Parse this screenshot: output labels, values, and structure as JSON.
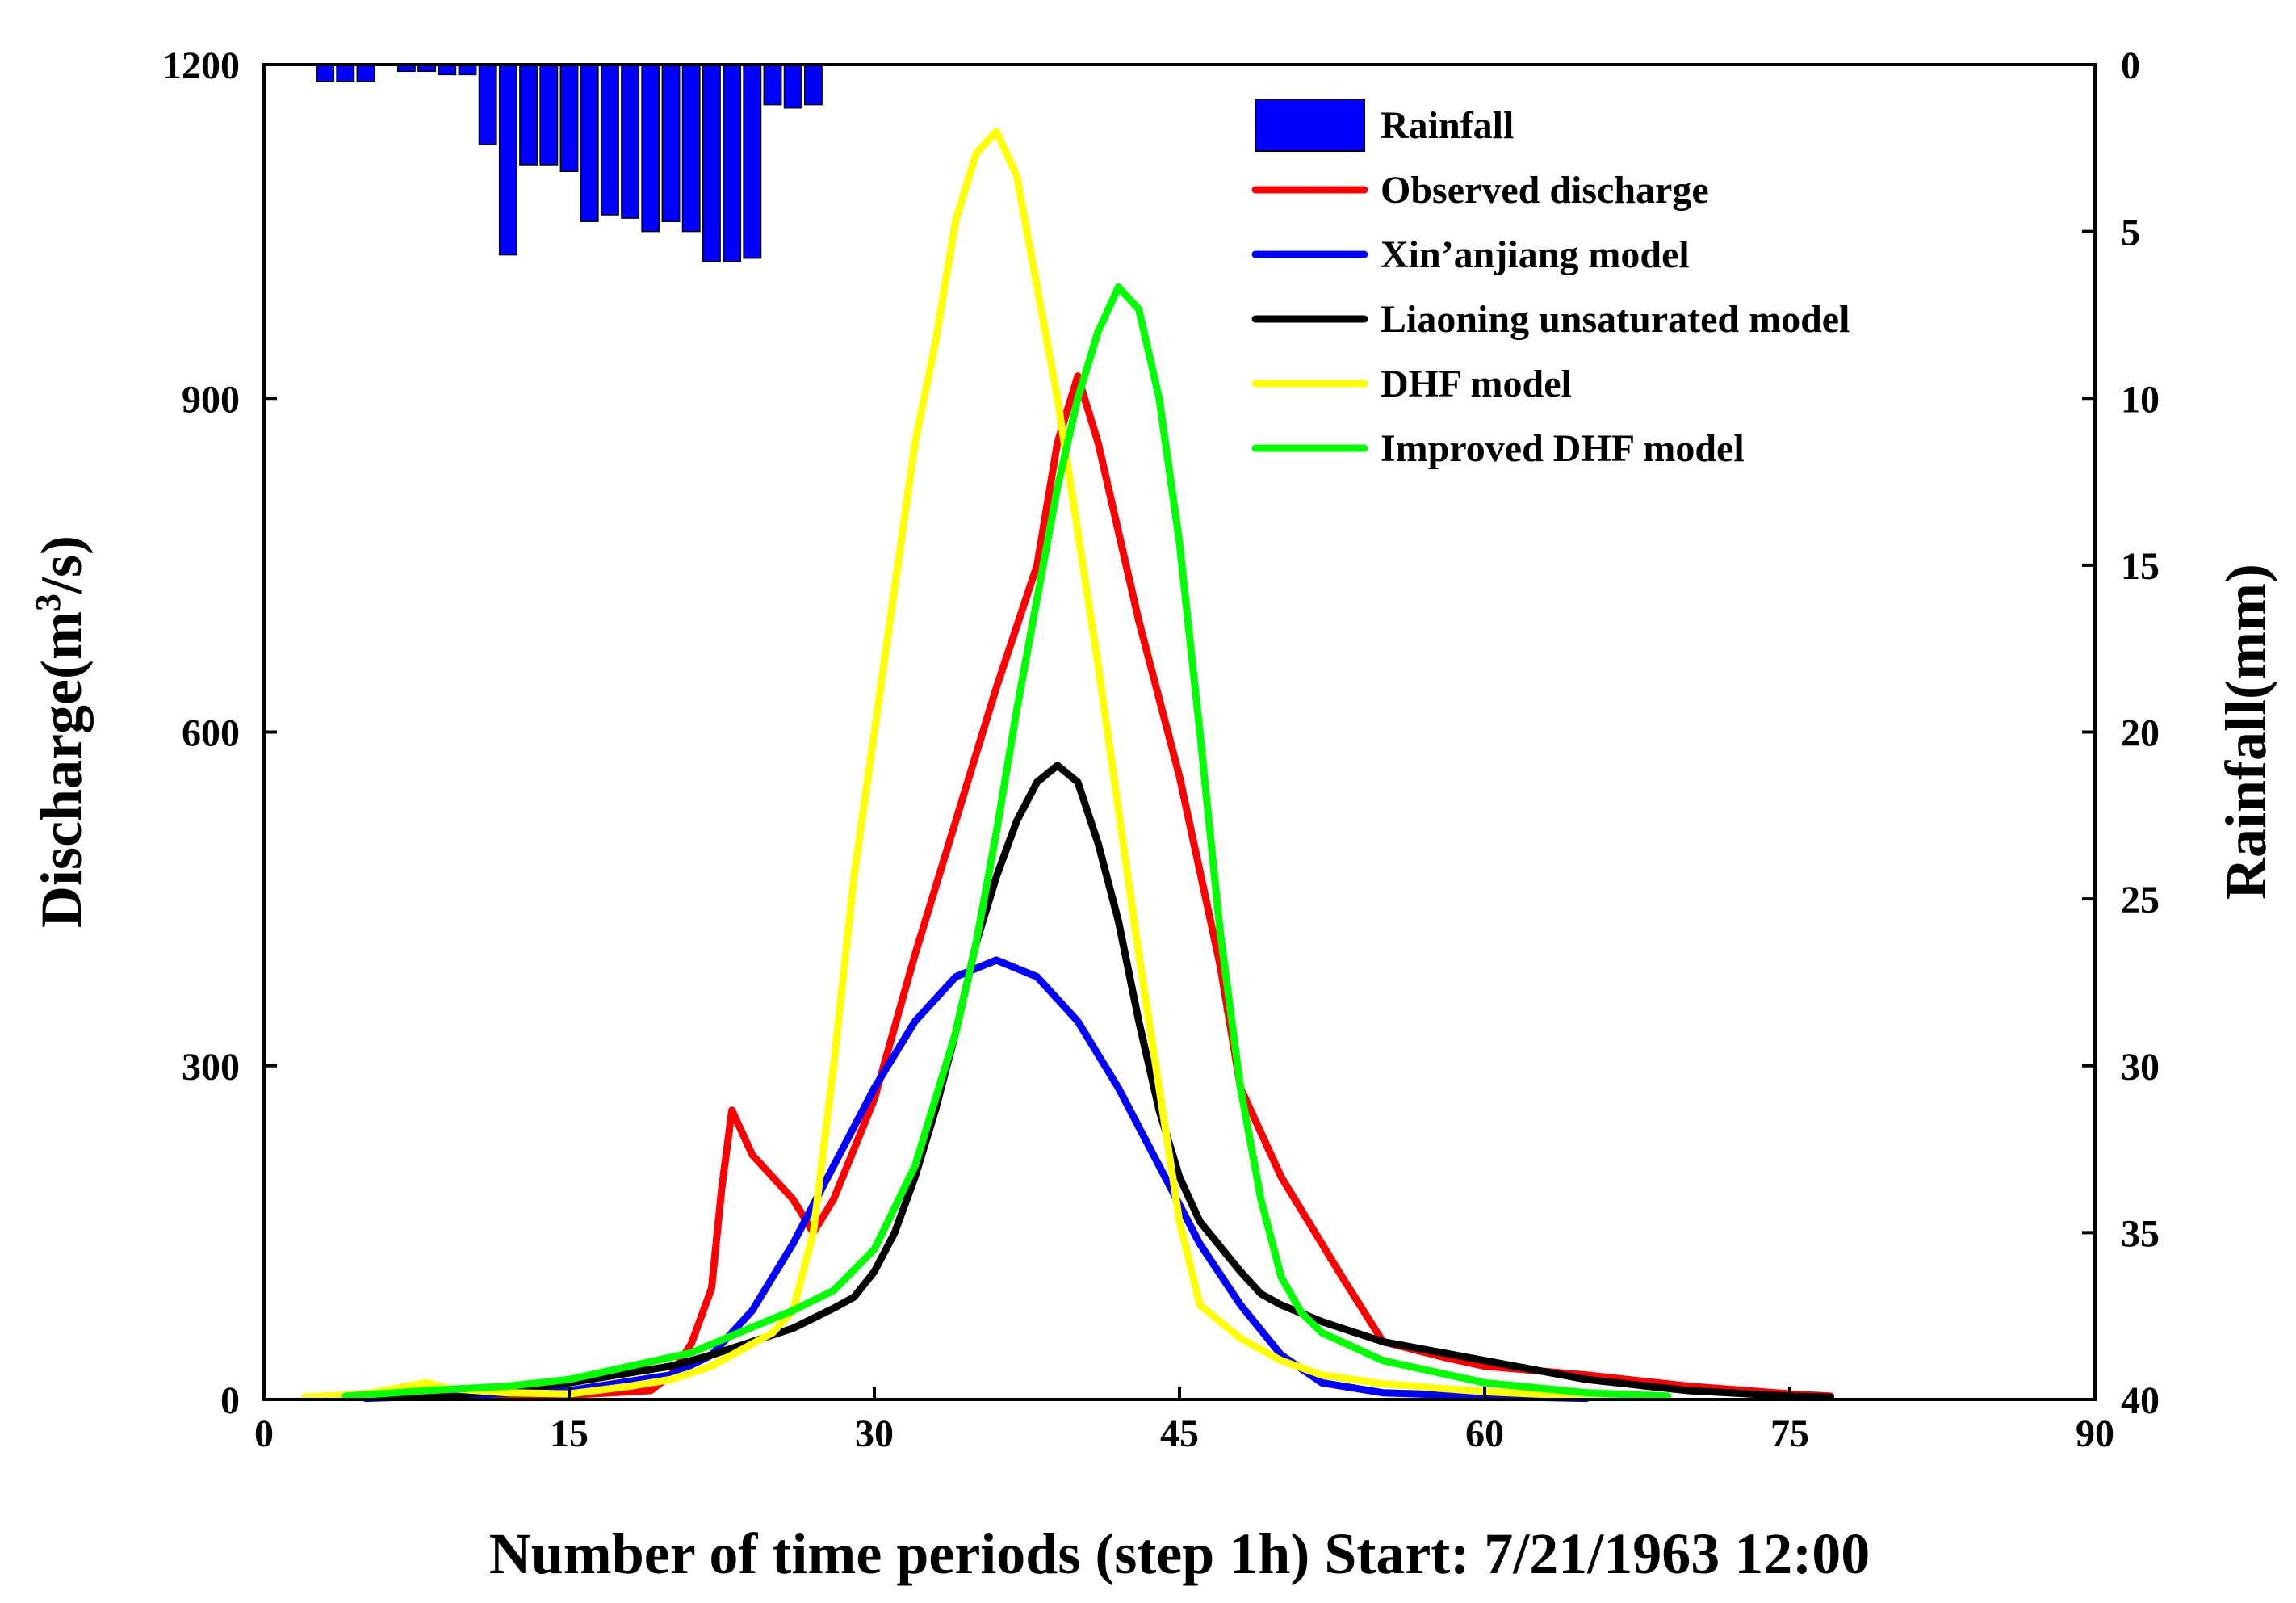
{
  "chart_data": {
    "type": "line",
    "title": "",
    "xlabel": "Number of time periods (step 1h) Start: 7/21/1963 12:00",
    "ylabel_left": "Discharge(m³/s)",
    "ylabel_left_parts": {
      "main": "Discharge(m",
      "sup": "3",
      "end": "/s)"
    },
    "ylabel_right": "Rainfall(mm)",
    "xlim": [
      0,
      90
    ],
    "ylim_left": [
      0,
      1200
    ],
    "ylim_right_inverted": [
      0,
      40
    ],
    "x_ticks": [
      0,
      15,
      30,
      45,
      60,
      75,
      90
    ],
    "y_left_ticks": [
      0,
      300,
      600,
      900,
      1200
    ],
    "y_right_ticks": [
      0,
      5,
      10,
      15,
      20,
      25,
      30,
      35,
      40
    ],
    "grid": false,
    "legend_position": "top-right",
    "rainfall": {
      "name": "Rainfall",
      "color": "#0000ff",
      "x": [
        3,
        4,
        5,
        7,
        8,
        9,
        10,
        11,
        12,
        13,
        14,
        15,
        16,
        17,
        18,
        19,
        20,
        21,
        22,
        23,
        24,
        25,
        26,
        27
      ],
      "values": [
        0.5,
        0.5,
        0.5,
        0.2,
        0.2,
        0.3,
        0.3,
        2.4,
        5.7,
        3.0,
        3.0,
        3.2,
        4.7,
        4.5,
        4.6,
        5.0,
        4.7,
        5.0,
        5.9,
        5.9,
        5.8,
        1.2,
        1.3,
        1.2
      ]
    },
    "series": [
      {
        "name": "Observed discharge",
        "color": "#ff0000",
        "points": [
          [
            2,
            2
          ],
          [
            5,
            3
          ],
          [
            10,
            3
          ],
          [
            15,
            4
          ],
          [
            19,
            8
          ],
          [
            20,
            22
          ],
          [
            21,
            50
          ],
          [
            22,
            100
          ],
          [
            22.5,
            190
          ],
          [
            23,
            260
          ],
          [
            24,
            220
          ],
          [
            25,
            200
          ],
          [
            26,
            180
          ],
          [
            27,
            150
          ],
          [
            28,
            180
          ],
          [
            30,
            270
          ],
          [
            32,
            400
          ],
          [
            34,
            520
          ],
          [
            36,
            640
          ],
          [
            38,
            750
          ],
          [
            39,
            860
          ],
          [
            40,
            920
          ],
          [
            41,
            860
          ],
          [
            43,
            700
          ],
          [
            45,
            560
          ],
          [
            47,
            390
          ],
          [
            48,
            280
          ],
          [
            50,
            200
          ],
          [
            52,
            140
          ],
          [
            53,
            110
          ],
          [
            55,
            52
          ],
          [
            58,
            38
          ],
          [
            60,
            30
          ],
          [
            65,
            22
          ],
          [
            70,
            12
          ],
          [
            75,
            5
          ],
          [
            77,
            3
          ]
        ]
      },
      {
        "name": "Xin’anjiang model",
        "color": "#0000ff",
        "points": [
          [
            5,
            1
          ],
          [
            10,
            4
          ],
          [
            15,
            8
          ],
          [
            20,
            22
          ],
          [
            22,
            40
          ],
          [
            24,
            80
          ],
          [
            26,
            140
          ],
          [
            28,
            210
          ],
          [
            30,
            280
          ],
          [
            32,
            340
          ],
          [
            34,
            380
          ],
          [
            36,
            395
          ],
          [
            38,
            380
          ],
          [
            40,
            340
          ],
          [
            42,
            280
          ],
          [
            44,
            210
          ],
          [
            46,
            140
          ],
          [
            48,
            85
          ],
          [
            50,
            40
          ],
          [
            52,
            15
          ],
          [
            55,
            6
          ],
          [
            60,
            3
          ],
          [
            65,
            1
          ]
        ]
      },
      {
        "name": "Liaoning unsaturated model",
        "color": "#000000",
        "points": [
          [
            5,
            2
          ],
          [
            10,
            5
          ],
          [
            15,
            15
          ],
          [
            20,
            30
          ],
          [
            22,
            40
          ],
          [
            24,
            52
          ],
          [
            26,
            64
          ],
          [
            28,
            82
          ],
          [
            29,
            92
          ],
          [
            30,
            115
          ],
          [
            31,
            150
          ],
          [
            32,
            200
          ],
          [
            33,
            260
          ],
          [
            34,
            330
          ],
          [
            35,
            410
          ],
          [
            36,
            470
          ],
          [
            37,
            520
          ],
          [
            38,
            555
          ],
          [
            39,
            570
          ],
          [
            40,
            555
          ],
          [
            41,
            500
          ],
          [
            42,
            430
          ],
          [
            43,
            340
          ],
          [
            44,
            260
          ],
          [
            45,
            200
          ],
          [
            46,
            160
          ],
          [
            48,
            115
          ],
          [
            49,
            95
          ],
          [
            50,
            85
          ],
          [
            52,
            70
          ],
          [
            55,
            52
          ],
          [
            60,
            35
          ],
          [
            65,
            18
          ],
          [
            70,
            8
          ],
          [
            75,
            3
          ],
          [
            77,
            2
          ]
        ]
      },
      {
        "name": "DHF model",
        "color": "#ffff00",
        "points": [
          [
            2,
            2
          ],
          [
            5,
            5
          ],
          [
            8,
            15
          ],
          [
            9,
            10
          ],
          [
            12,
            6
          ],
          [
            15,
            5
          ],
          [
            18,
            12
          ],
          [
            20,
            18
          ],
          [
            22,
            30
          ],
          [
            25,
            60
          ],
          [
            26,
            80
          ],
          [
            27,
            150
          ],
          [
            28,
            300
          ],
          [
            29,
            470
          ],
          [
            30,
            600
          ],
          [
            31,
            730
          ],
          [
            32,
            860
          ],
          [
            33,
            950
          ],
          [
            34,
            1060
          ],
          [
            35,
            1120
          ],
          [
            36,
            1140
          ],
          [
            37,
            1100
          ],
          [
            38,
            1000
          ],
          [
            39,
            900
          ],
          [
            40,
            780
          ],
          [
            41,
            660
          ],
          [
            42,
            530
          ],
          [
            43,
            400
          ],
          [
            44,
            280
          ],
          [
            45,
            160
          ],
          [
            46,
            85
          ],
          [
            47,
            70
          ],
          [
            48,
            55
          ],
          [
            50,
            35
          ],
          [
            52,
            22
          ],
          [
            55,
            14
          ],
          [
            60,
            7
          ],
          [
            65,
            3
          ],
          [
            69,
            2
          ]
        ]
      },
      {
        "name": "Improved DHF model",
        "color": "#00ff00",
        "points": [
          [
            4,
            3
          ],
          [
            8,
            8
          ],
          [
            12,
            12
          ],
          [
            15,
            18
          ],
          [
            18,
            30
          ],
          [
            21,
            42
          ],
          [
            24,
            65
          ],
          [
            26,
            80
          ],
          [
            28,
            98
          ],
          [
            30,
            135
          ],
          [
            32,
            210
          ],
          [
            34,
            330
          ],
          [
            35,
            410
          ],
          [
            36,
            510
          ],
          [
            37,
            620
          ],
          [
            38,
            720
          ],
          [
            39,
            820
          ],
          [
            40,
            900
          ],
          [
            41,
            960
          ],
          [
            42,
            1000
          ],
          [
            43,
            980
          ],
          [
            44,
            900
          ],
          [
            45,
            770
          ],
          [
            46,
            600
          ],
          [
            47,
            420
          ],
          [
            48,
            280
          ],
          [
            49,
            180
          ],
          [
            50,
            110
          ],
          [
            51,
            78
          ],
          [
            52,
            60
          ],
          [
            55,
            35
          ],
          [
            60,
            15
          ],
          [
            65,
            6
          ],
          [
            69,
            3
          ]
        ]
      }
    ]
  }
}
